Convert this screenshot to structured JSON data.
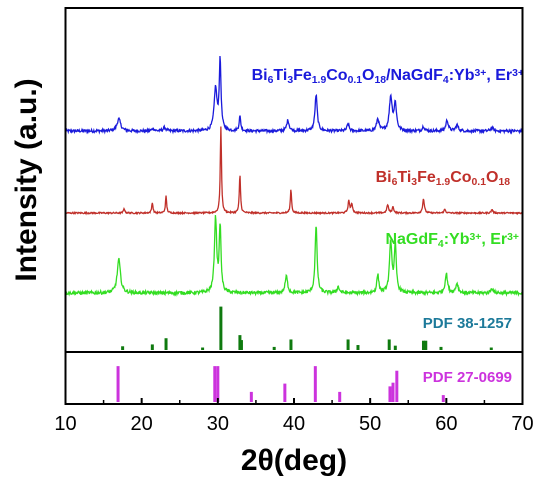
{
  "chart_data": {
    "type": "line",
    "xlabel": "2θ(deg)",
    "ylabel": "Intensity (a.u.)",
    "xlim": [
      10,
      70
    ],
    "xticks": [
      "10",
      "20",
      "30",
      "40",
      "50",
      "60",
      "70"
    ],
    "grid": false,
    "series": [
      {
        "name": "Bi6Ti3Fe1.9Co0.1O18/NaGdF4:Yb3+, Er3+",
        "label_parts": [
          {
            "t": "Bi",
            "s": "n"
          },
          {
            "t": "6",
            "s": "sub"
          },
          {
            "t": "Ti",
            "s": "n"
          },
          {
            "t": "3",
            "s": "sub"
          },
          {
            "t": "Fe",
            "s": "n"
          },
          {
            "t": "1.9",
            "s": "sub"
          },
          {
            "t": "Co",
            "s": "n"
          },
          {
            "t": "0.1",
            "s": "sub"
          },
          {
            "t": "O",
            "s": "n"
          },
          {
            "t": "18",
            "s": "sub"
          },
          {
            "t": "/NaGdF",
            "s": "n"
          },
          {
            "t": "4",
            "s": "sub"
          },
          {
            "t": ":Yb",
            "s": "n"
          },
          {
            "t": "3+",
            "s": "sup"
          },
          {
            "t": ", Er",
            "s": "n"
          },
          {
            "t": "3+",
            "s": "sup"
          }
        ],
        "color": "#1a1adb",
        "baseline": 0.0,
        "noise": 0.012,
        "peaks": [
          [
            17.0,
            0.1,
            0.45
          ],
          [
            21.5,
            0.02,
            0.3
          ],
          [
            23.0,
            0.03,
            0.3
          ],
          [
            29.7,
            0.35,
            0.35
          ],
          [
            30.3,
            0.58,
            0.22
          ],
          [
            32.9,
            0.12,
            0.2
          ],
          [
            39.2,
            0.09,
            0.3
          ],
          [
            42.9,
            0.3,
            0.28
          ],
          [
            47.1,
            0.06,
            0.25
          ],
          [
            51.0,
            0.1,
            0.3
          ],
          [
            52.7,
            0.28,
            0.35
          ],
          [
            53.3,
            0.22,
            0.3
          ],
          [
            57.0,
            0.04,
            0.25
          ],
          [
            60.1,
            0.09,
            0.3
          ],
          [
            61.4,
            0.05,
            0.3
          ],
          [
            66.0,
            0.03,
            0.3
          ]
        ]
      },
      {
        "name": "Bi6Ti3Fe1.9Co0.1O18",
        "label_parts": [
          {
            "t": "Bi",
            "s": "n"
          },
          {
            "t": "6",
            "s": "sub"
          },
          {
            "t": "Ti",
            "s": "n"
          },
          {
            "t": "3",
            "s": "sub"
          },
          {
            "t": "Fe",
            "s": "n"
          },
          {
            "t": "1.9",
            "s": "sub"
          },
          {
            "t": "Co",
            "s": "n"
          },
          {
            "t": "0.1",
            "s": "sub"
          },
          {
            "t": "O",
            "s": "n"
          },
          {
            "t": "18",
            "s": "sub"
          }
        ],
        "color": "#c0302a",
        "baseline": 0.0,
        "noise": 0.006,
        "peaks": [
          [
            17.7,
            0.04,
            0.15
          ],
          [
            21.4,
            0.09,
            0.15
          ],
          [
            23.2,
            0.14,
            0.15
          ],
          [
            30.4,
            0.72,
            0.15
          ],
          [
            32.9,
            0.32,
            0.15
          ],
          [
            39.6,
            0.2,
            0.15
          ],
          [
            47.2,
            0.1,
            0.2
          ],
          [
            47.6,
            0.07,
            0.2
          ],
          [
            52.3,
            0.07,
            0.2
          ],
          [
            53.0,
            0.05,
            0.2
          ],
          [
            57.0,
            0.12,
            0.2
          ],
          [
            59.8,
            0.03,
            0.2
          ],
          [
            66.0,
            0.03,
            0.2
          ]
        ]
      },
      {
        "name": "NaGdF4:Yb3+, Er3+",
        "label_parts": [
          {
            "t": "NaGdF",
            "s": "n"
          },
          {
            "t": "4",
            "s": "sub"
          },
          {
            "t": ":Yb",
            "s": "n"
          },
          {
            "t": "3+",
            "s": "sup"
          },
          {
            "t": ", Er",
            "s": "n"
          },
          {
            "t": "3+",
            "s": "sup"
          }
        ],
        "color": "#33dd22",
        "baseline": 0.0,
        "noise": 0.014,
        "peaks": [
          [
            17.0,
            0.28,
            0.4
          ],
          [
            29.7,
            0.62,
            0.28
          ],
          [
            30.3,
            0.55,
            0.22
          ],
          [
            39.0,
            0.14,
            0.3
          ],
          [
            42.9,
            0.56,
            0.25
          ],
          [
            45.8,
            0.05,
            0.3
          ],
          [
            51.0,
            0.15,
            0.25
          ],
          [
            52.7,
            0.42,
            0.3
          ],
          [
            53.3,
            0.38,
            0.25
          ],
          [
            60.0,
            0.16,
            0.3
          ],
          [
            61.4,
            0.08,
            0.3
          ],
          [
            66.0,
            0.04,
            0.3
          ]
        ]
      }
    ],
    "references": [
      {
        "name": "PDF 38-1257",
        "color": "#0f7a0f",
        "label_color": "#1d7a9a",
        "sticks": [
          [
            17.5,
            0.06
          ],
          [
            21.4,
            0.09
          ],
          [
            23.2,
            0.19
          ],
          [
            28.0,
            0.04
          ],
          [
            30.4,
            0.7
          ],
          [
            32.9,
            0.24
          ],
          [
            33.1,
            0.16
          ],
          [
            37.4,
            0.05
          ],
          [
            39.6,
            0.17
          ],
          [
            47.1,
            0.17
          ],
          [
            48.4,
            0.08
          ],
          [
            52.5,
            0.17
          ],
          [
            53.3,
            0.07
          ],
          [
            57.0,
            0.15
          ],
          [
            57.3,
            0.15
          ],
          [
            59.3,
            0.05
          ],
          [
            65.9,
            0.04
          ]
        ]
      },
      {
        "name": "PDF 27-0699",
        "color": "#cc33dd",
        "label_color": "#cc33dd",
        "sticks": [
          [
            16.9,
            0.78
          ],
          [
            29.6,
            0.78
          ],
          [
            30.0,
            0.78
          ],
          [
            34.4,
            0.22
          ],
          [
            38.8,
            0.4
          ],
          [
            42.8,
            0.78
          ],
          [
            46.0,
            0.22
          ],
          [
            52.6,
            0.34
          ],
          [
            53.0,
            0.42
          ],
          [
            53.5,
            0.68
          ],
          [
            59.6,
            0.15
          ]
        ]
      }
    ]
  }
}
